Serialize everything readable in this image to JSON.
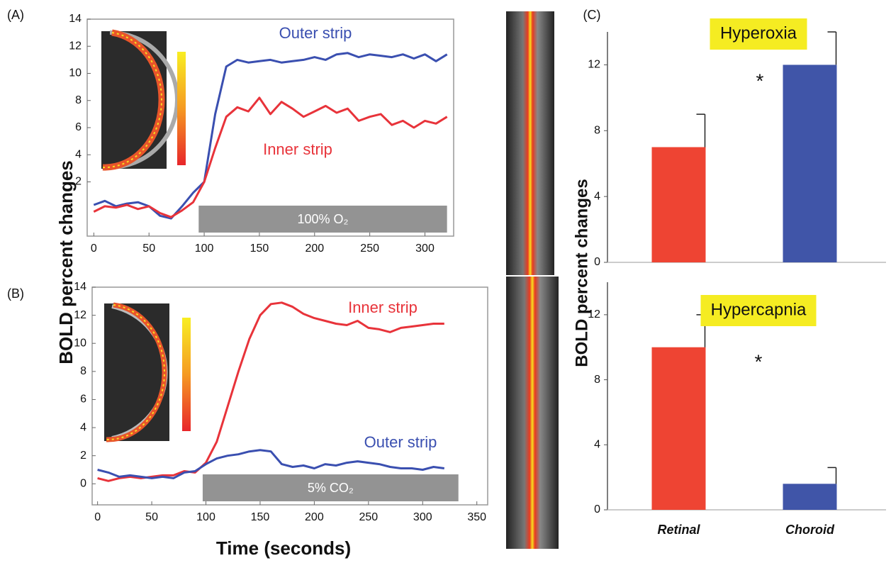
{
  "chart_data": [
    {
      "type": "line",
      "panel_label": "(A)",
      "ylabel": "BOLD percent changes",
      "x": [
        0,
        10,
        20,
        30,
        40,
        50,
        60,
        70,
        80,
        90,
        100,
        110,
        120,
        130,
        140,
        150,
        160,
        170,
        180,
        190,
        200,
        210,
        220,
        230,
        240,
        250,
        260,
        270,
        280,
        290,
        300,
        310,
        320
      ],
      "series": [
        {
          "name": "Outer strip",
          "color": "#3a4fb0",
          "values": [
            0.3,
            0.6,
            0.2,
            0.4,
            0.5,
            0.2,
            -0.5,
            -0.7,
            0.2,
            1.2,
            2,
            7,
            10.5,
            11,
            10.8,
            10.9,
            11,
            10.8,
            10.9,
            11,
            11.2,
            11,
            11.4,
            11.5,
            11.2,
            11.4,
            11.3,
            11.2,
            11.4,
            11.1,
            11.4,
            10.9,
            11.4
          ]
        },
        {
          "name": "Inner strip",
          "color": "#e8333a",
          "values": [
            -0.2,
            0.2,
            0.1,
            0.3,
            0,
            0.2,
            -0.3,
            -0.6,
            -0.1,
            0.5,
            2,
            4.5,
            6.8,
            7.5,
            7.2,
            8.2,
            7,
            7.9,
            7.4,
            6.8,
            7.2,
            7.6,
            7.1,
            7.4,
            6.5,
            6.8,
            7,
            6.2,
            6.5,
            6,
            6.5,
            6.3,
            6.8
          ]
        }
      ],
      "stimulus": {
        "label": "100% O₂",
        "start": 95,
        "end": 320
      },
      "xlim": [
        -6,
        326
      ],
      "ylim": [
        -2,
        14
      ],
      "xticks": [
        0,
        50,
        100,
        150,
        200,
        250,
        300
      ],
      "yticks": [
        2,
        4,
        6,
        8,
        10,
        12,
        14
      ]
    },
    {
      "type": "line",
      "panel_label": "(B)",
      "xlabel": "Time (seconds)",
      "x": [
        0,
        10,
        20,
        30,
        40,
        50,
        60,
        70,
        80,
        90,
        100,
        110,
        120,
        130,
        140,
        150,
        160,
        170,
        180,
        190,
        200,
        210,
        220,
        230,
        240,
        250,
        260,
        270,
        280,
        290,
        300,
        310,
        320
      ],
      "series": [
        {
          "name": "Inner strip",
          "color": "#e8333a",
          "values": [
            0.4,
            0.2,
            0.4,
            0.5,
            0.4,
            0.5,
            0.6,
            0.6,
            0.9,
            0.8,
            1.5,
            3,
            5.5,
            8,
            10.3,
            12,
            12.8,
            12.9,
            12.6,
            12.1,
            11.8,
            11.6,
            11.4,
            11.3,
            11.6,
            11.1,
            11,
            10.8,
            11.1,
            11.2,
            11.3,
            11.4,
            11.4
          ]
        },
        {
          "name": "Outer strip",
          "color": "#3a4fb0",
          "values": [
            1,
            0.8,
            0.5,
            0.6,
            0.5,
            0.4,
            0.5,
            0.4,
            0.8,
            0.9,
            1.4,
            1.8,
            2,
            2.1,
            2.3,
            2.4,
            2.3,
            1.4,
            1.2,
            1.3,
            1.1,
            1.4,
            1.3,
            1.5,
            1.6,
            1.5,
            1.4,
            1.2,
            1.1,
            1.1,
            1,
            1.2,
            1.1
          ]
        }
      ],
      "stimulus": {
        "label": "5% CO₂",
        "start": 97,
        "end": 333
      },
      "xlim": [
        -5,
        360
      ],
      "ylim": [
        -1.5,
        14
      ],
      "xticks": [
        0,
        50,
        100,
        150,
        200,
        250,
        300,
        350
      ],
      "yticks": [
        0,
        2,
        4,
        6,
        8,
        10,
        12,
        14
      ]
    },
    {
      "type": "bar",
      "panel_label": "(C)",
      "title": "Hyperoxia",
      "ylabel": "BOLD percent changes",
      "annotation": "*",
      "categories": [
        null,
        null
      ],
      "values": [
        7,
        12
      ],
      "errors": [
        2,
        2
      ],
      "colors": [
        "#ee4433",
        "#4055a8"
      ],
      "ylim": [
        0,
        14
      ],
      "yticks": [
        0,
        4,
        8,
        12
      ]
    },
    {
      "type": "bar",
      "title": "Hypercapnia",
      "annotation": "*",
      "categories": [
        "Retinal",
        "Choroid"
      ],
      "values": [
        10,
        1.6
      ],
      "errors": [
        2,
        1
      ],
      "colors": [
        "#ee4433",
        "#4055a8"
      ],
      "ylim": [
        0,
        14
      ],
      "yticks": [
        0,
        4,
        8,
        12
      ]
    }
  ]
}
